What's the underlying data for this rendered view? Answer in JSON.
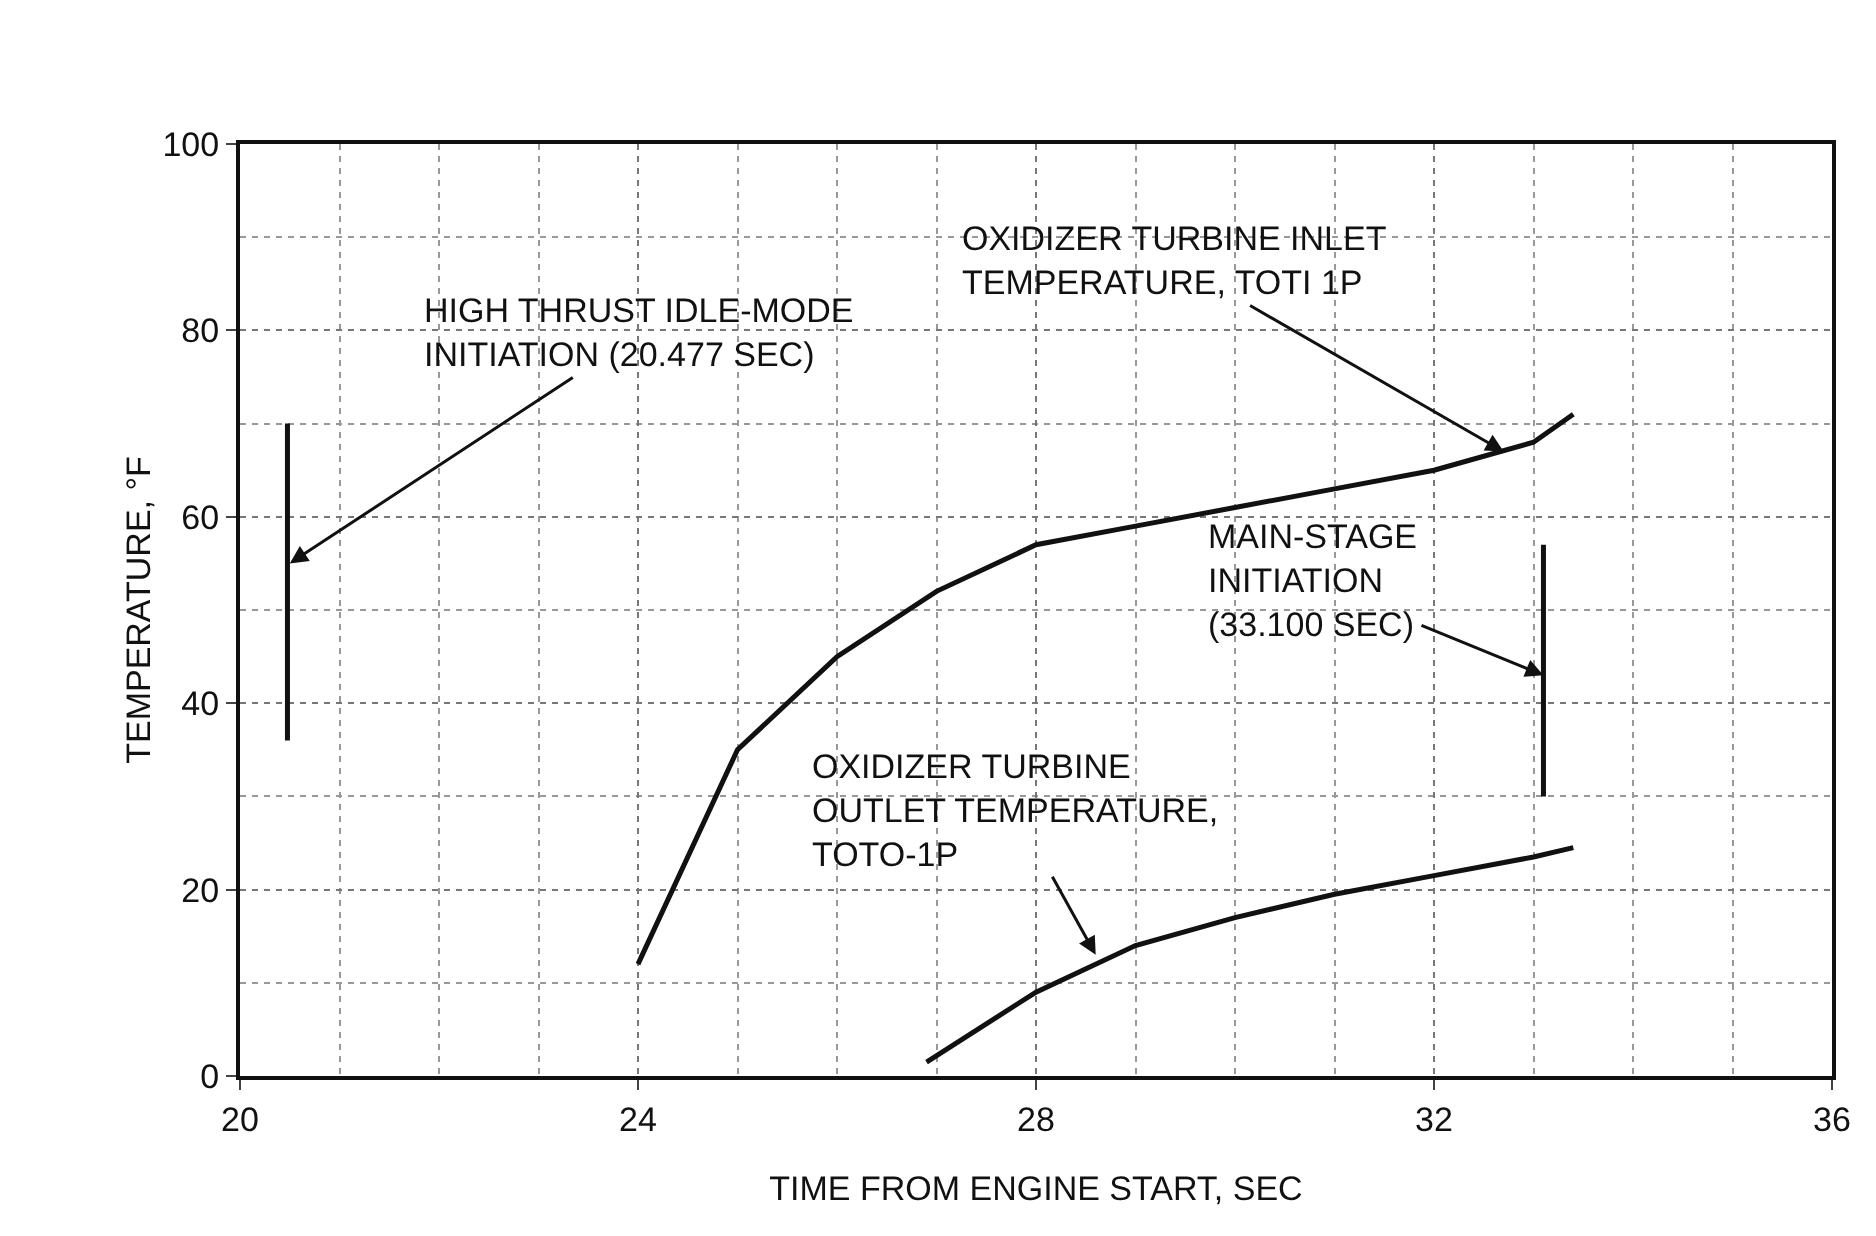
{
  "chart_data": {
    "type": "line",
    "xlabel": "TIME FROM ENGINE START, SEC",
    "ylabel": "TEMPERATURE, °F",
    "xlim": [
      20,
      36
    ],
    "xticks": [
      20,
      24,
      28,
      32,
      36
    ],
    "ylim": [
      0,
      100
    ],
    "yticks": [
      0,
      20,
      40,
      60,
      80,
      100
    ],
    "grid": true,
    "color": "#111111",
    "series": [
      {
        "x": [
          24,
          25,
          26,
          27,
          28,
          29,
          30,
          31,
          32,
          33,
          33.4
        ],
        "values": [
          12,
          35,
          45,
          52,
          57,
          59,
          61,
          63,
          65,
          68,
          71
        ]
      },
      {
        "x": [
          26.9,
          28,
          29,
          30,
          31,
          32,
          33,
          33.4
        ],
        "values": [
          1.5,
          9,
          14,
          17,
          19.5,
          21.5,
          23.5,
          24.5
        ]
      },
      {
        "x": [
          20.477,
          20.477
        ],
        "values": [
          36,
          70
        ]
      },
      {
        "x": [
          33.1,
          33.1
        ],
        "values": [
          30,
          57
        ]
      }
    ],
    "annotations": [
      {
        "text": "OXIDIZER TURBINE INLET\nTEMPERATURE, TOTI 1P",
        "x": 32.7,
        "y": 67
      },
      {
        "text": "HIGH THRUST IDLE-MODE\nINITIATION (20.477 SEC)",
        "x": 20.5,
        "y": 55
      },
      {
        "text": "MAIN-STAGE\nINITIATION\n(33.100 SEC)",
        "x": 33.1,
        "y": 43
      },
      {
        "text": "OXIDIZER TURBINE\nOUTLET TEMPERATURE,\nTOTO-1P",
        "x": 28.6,
        "y": 13
      }
    ]
  }
}
